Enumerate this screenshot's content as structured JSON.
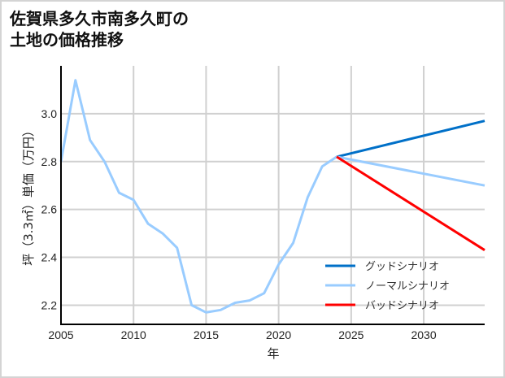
{
  "title_line1": "佐賀県多久市南多久町の",
  "title_line2": "土地の価格推移",
  "chart_data": {
    "type": "line",
    "title": "佐賀県多久市南多久町の土地の価格推移",
    "xlabel": "年",
    "ylabel": "坪（3.3㎡）単価（万円）",
    "xlim": [
      2005,
      2034.2
    ],
    "ylim": [
      2.12,
      3.2
    ],
    "xticks": [
      2005,
      2010,
      2015,
      2020,
      2025,
      2030
    ],
    "yticks": [
      2.2,
      2.4,
      2.6,
      2.8,
      3.0
    ],
    "xtick_labels": [
      "2005",
      "2010",
      "2015",
      "2020",
      "2025",
      "2030"
    ],
    "ytick_labels": [
      "2.2",
      "2.4",
      "2.6",
      "2.8",
      "3.0"
    ],
    "grid": true,
    "legend_position": "lower right",
    "series": [
      {
        "name": "historical",
        "color": "#99ccff",
        "x": [
          2005,
          2006,
          2007,
          2008,
          2009,
          2010,
          2011,
          2012,
          2013,
          2014,
          2015,
          2016,
          2017,
          2018,
          2019,
          2020,
          2021,
          2022,
          2023,
          2024
        ],
        "y": [
          2.8,
          3.14,
          2.89,
          2.8,
          2.67,
          2.64,
          2.54,
          2.5,
          2.44,
          2.2,
          2.17,
          2.18,
          2.21,
          2.22,
          2.25,
          2.37,
          2.46,
          2.65,
          2.78,
          2.82
        ]
      },
      {
        "name": "グッドシナリオ",
        "color": "#0070c8",
        "x": [
          2024,
          2034.2
        ],
        "y": [
          2.82,
          2.97
        ]
      },
      {
        "name": "ノーマルシナリオ",
        "color": "#99ccff",
        "x": [
          2024,
          2034.2
        ],
        "y": [
          2.82,
          2.7
        ]
      },
      {
        "name": "バッドシナリオ",
        "color": "#ff0000",
        "x": [
          2024,
          2034.2
        ],
        "y": [
          2.82,
          2.43
        ]
      }
    ],
    "legend": [
      {
        "label": "グッドシナリオ",
        "color": "#0070c8"
      },
      {
        "label": "ノーマルシナリオ",
        "color": "#99ccff"
      },
      {
        "label": "バッドシナリオ",
        "color": "#ff0000"
      }
    ]
  },
  "colors": {
    "grid": "#d0d0d0",
    "axis": "#000000",
    "border": "#d4d4d4"
  }
}
